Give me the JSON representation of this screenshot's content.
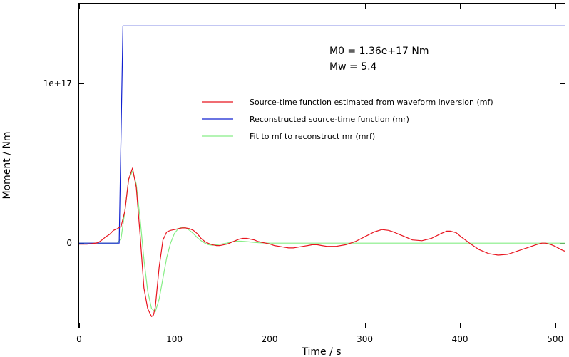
{
  "chart_data": {
    "type": "line",
    "xlabel": "Time / s",
    "ylabel": "Moment / Nm",
    "xlim": [
      0,
      510
    ],
    "ylim": [
      -5.3e+16,
      1.5e+17
    ],
    "x_ticks": [
      0,
      100,
      200,
      300,
      400,
      500
    ],
    "x_tick_labels": [
      "0",
      "100",
      "200",
      "300",
      "400",
      "500"
    ],
    "y_ticks": [
      0,
      1e+17
    ],
    "y_tick_labels": [
      "0",
      "1e+17"
    ],
    "grid": false,
    "legend_position": "upper-right",
    "annotations": [
      "M0 = 1.36e+17 Nm",
      "Mw = 5.4"
    ],
    "series": [
      {
        "name": "Source-time function estimated from waveform inversion (mf)",
        "color": "#e8141e",
        "x": [
          0,
          8,
          14,
          20,
          24,
          28,
          32,
          36,
          40,
          44,
          48,
          52,
          56,
          60,
          64,
          68,
          72,
          76,
          78,
          80,
          84,
          88,
          92,
          96,
          100,
          104,
          108,
          112,
          116,
          120,
          124,
          128,
          132,
          136,
          140,
          144,
          148,
          152,
          156,
          160,
          164,
          168,
          172,
          176,
          180,
          184,
          188,
          192,
          196,
          200,
          205,
          210,
          215,
          220,
          225,
          230,
          235,
          240,
          245,
          250,
          255,
          260,
          265,
          270,
          280,
          290,
          300,
          310,
          318,
          325,
          330,
          340,
          350,
          360,
          370,
          380,
          386,
          390,
          396,
          400,
          410,
          420,
          430,
          440,
          450,
          460,
          470,
          480,
          486,
          490,
          496,
          500,
          506,
          510
        ],
        "y": [
          -600000000000000.0,
          -600000000000000.0,
          -300000000000000.0,
          300000000000000.0,
          2000000000000000.0,
          4000000000000000.0,
          5500000000000000.0,
          8000000000000000.0,
          9000000000000000.0,
          1.05e+16,
          2e+16,
          4e+16,
          4.7e+16,
          3.5e+16,
          5000000000000000.0,
          -2.8e+16,
          -4.1e+16,
          -4.6e+16,
          -4.5e+16,
          -4e+16,
          -1.5e+16,
          2000000000000000.0,
          7000000000000000.0,
          8000000000000000.0,
          8500000000000000.0,
          9000000000000000.0,
          9500000000000000.0,
          9500000000000000.0,
          9000000000000000.0,
          8000000000000000.0,
          6000000000000000.0,
          3000000000000000.0,
          1000000000000000.0,
          -200000000000000.0,
          -1000000000000000.0,
          -1500000000000000.0,
          -1500000000000000.0,
          -1000000000000000.0,
          -500000000000000.0,
          500000000000000.0,
          1500000000000000.0,
          2500000000000000.0,
          3000000000000000.0,
          3000000000000000.0,
          2500000000000000.0,
          2000000000000000.0,
          1000000000000000.0,
          500000000000000.0,
          0,
          -500000000000000.0,
          -1500000000000000.0,
          -2000000000000000.0,
          -2500000000000000.0,
          -3000000000000000.0,
          -3000000000000000.0,
          -2500000000000000.0,
          -2000000000000000.0,
          -1500000000000000.0,
          -1000000000000000.0,
          -1000000000000000.0,
          -1500000000000000.0,
          -2000000000000000.0,
          -2000000000000000.0,
          -2000000000000000.0,
          -1000000000000000.0,
          1000000000000000.0,
          4000000000000000.0,
          7000000000000000.0,
          8500000000000000.0,
          8000000000000000.0,
          7000000000000000.0,
          4500000000000000.0,
          2000000000000000.0,
          1500000000000000.0,
          3000000000000000.0,
          6000000000000000.0,
          7500000000000000.0,
          7500000000000000.0,
          6500000000000000.0,
          4500000000000000.0,
          0,
          -4000000000000000.0,
          -6500000000000000.0,
          -7500000000000000.0,
          -7000000000000000.0,
          -5000000000000000.0,
          -3000000000000000.0,
          -1000000000000000.0,
          0,
          0,
          -1000000000000000.0,
          -2000000000000000.0,
          -4000000000000000.0,
          -5000000000000000.0
        ]
      },
      {
        "name": "Reconstructed source-time function (mr)",
        "color": "#1020d0",
        "x": [
          0,
          42,
          46,
          510
        ],
        "y": [
          0,
          0,
          1.36e+17,
          1.36e+17
        ]
      },
      {
        "name": "Fit to mf to reconstruct mr (mrf)",
        "color": "#86ee86",
        "x": [
          0,
          40,
          44,
          48,
          52,
          56,
          60,
          64,
          68,
          72,
          76,
          80,
          84,
          88,
          92,
          96,
          100,
          104,
          108,
          112,
          116,
          120,
          124,
          128,
          132,
          136,
          140,
          145,
          150,
          155,
          160,
          165,
          170,
          175,
          180,
          185,
          190,
          195,
          200,
          210,
          220,
          510
        ],
        "y": [
          0,
          0,
          3000000000000000.0,
          2e+16,
          4e+16,
          4.5e+16,
          3.7e+16,
          1.5e+16,
          -1e+16,
          -3e+16,
          -4.1e+16,
          -4.3e+16,
          -3.5e+16,
          -2.2e+16,
          -9000000000000000.0,
          0,
          6000000000000000.0,
          9000000000000000.0,
          1e+16,
          9500000000000000.0,
          8000000000000000.0,
          6000000000000000.0,
          3500000000000000.0,
          1500000000000000.0,
          0,
          -1000000000000000.0,
          -1300000000000000.0,
          -1000000000000000.0,
          -500000000000000.0,
          0,
          800000000000000.0,
          1200000000000000.0,
          1200000000000000.0,
          1000000000000000.0,
          700000000000000.0,
          400000000000000.0,
          200000000000000.0,
          100000000000000.0,
          0,
          0,
          0,
          0
        ]
      }
    ]
  }
}
